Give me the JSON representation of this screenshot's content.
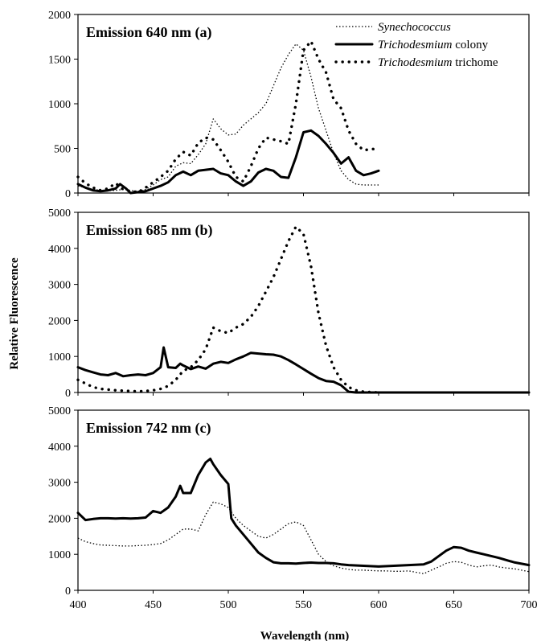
{
  "figure": {
    "ylabel": "Relative Fluorescence",
    "xlabel": "Wavelength (nm)"
  },
  "legend": {
    "items": [
      {
        "name": "Synechococcus",
        "italic_part": "Synechococcus",
        "rest": "",
        "style": "fine-dotted"
      },
      {
        "name": "Trichodesmium colony",
        "italic_part": "Trichodesmium",
        "rest": " colony",
        "style": "solid"
      },
      {
        "name": "Trichodesmium trichome",
        "italic_part": "Trichodesmium",
        "rest": " trichome",
        "style": "coarse-dotted"
      }
    ]
  },
  "chart_data": [
    {
      "type": "line",
      "title": "Emission 640 nm (a)",
      "xlim": [
        400,
        700
      ],
      "ylim": [
        0,
        2000
      ],
      "yticks": [
        0,
        500,
        1000,
        1500,
        2000
      ],
      "grid": false,
      "legend_position": "top-right",
      "series": [
        {
          "name": "Synechococcus",
          "style": "fine-dotted",
          "x": [
            400,
            405,
            410,
            415,
            420,
            425,
            430,
            435,
            440,
            445,
            450,
            455,
            460,
            465,
            470,
            475,
            480,
            485,
            490,
            495,
            500,
            505,
            510,
            515,
            520,
            525,
            530,
            535,
            540,
            545,
            550,
            555,
            560,
            565,
            570,
            575,
            580,
            585,
            590,
            600
          ],
          "y": [
            80,
            60,
            40,
            30,
            25,
            30,
            40,
            30,
            20,
            40,
            90,
            150,
            180,
            300,
            340,
            330,
            430,
            550,
            830,
            720,
            650,
            660,
            760,
            830,
            900,
            1000,
            1200,
            1400,
            1550,
            1670,
            1600,
            1300,
            950,
            700,
            450,
            250,
            150,
            100,
            90,
            90
          ]
        },
        {
          "name": "Trichodesmium colony",
          "style": "solid",
          "x": [
            400,
            405,
            410,
            415,
            420,
            425,
            428,
            432,
            435,
            440,
            445,
            450,
            455,
            460,
            465,
            470,
            475,
            480,
            485,
            490,
            495,
            500,
            505,
            510,
            515,
            520,
            525,
            530,
            535,
            540,
            545,
            550,
            555,
            560,
            565,
            570,
            575,
            580,
            585,
            590,
            595,
            600
          ],
          "y": [
            100,
            60,
            30,
            20,
            30,
            50,
            100,
            50,
            0,
            10,
            20,
            50,
            80,
            120,
            200,
            240,
            200,
            250,
            260,
            270,
            220,
            200,
            130,
            80,
            130,
            230,
            270,
            250,
            180,
            170,
            400,
            680,
            700,
            640,
            550,
            450,
            330,
            400,
            250,
            200,
            220,
            250
          ]
        },
        {
          "name": "Trichodesmium trichome",
          "style": "coarse-dotted",
          "x": [
            400,
            405,
            410,
            415,
            420,
            425,
            430,
            435,
            440,
            445,
            450,
            455,
            460,
            465,
            470,
            475,
            480,
            485,
            490,
            495,
            500,
            505,
            510,
            515,
            520,
            525,
            530,
            535,
            540,
            545,
            550,
            555,
            560,
            565,
            570,
            575,
            580,
            585,
            590,
            600
          ],
          "y": [
            180,
            110,
            60,
            30,
            50,
            110,
            40,
            20,
            10,
            60,
            120,
            180,
            250,
            380,
            460,
            420,
            560,
            620,
            600,
            480,
            350,
            180,
            130,
            300,
            500,
            620,
            600,
            580,
            550,
            1000,
            1600,
            1700,
            1500,
            1350,
            1050,
            950,
            700,
            550,
            480,
            500
          ]
        }
      ]
    },
    {
      "type": "line",
      "title": "Emission 685 nm (b)",
      "xlim": [
        400,
        700
      ],
      "ylim": [
        0,
        5000
      ],
      "yticks": [
        0,
        1000,
        2000,
        3000,
        4000,
        5000
      ],
      "grid": false,
      "series": [
        {
          "name": "Trichodesmium colony",
          "style": "solid",
          "x": [
            400,
            405,
            410,
            415,
            420,
            425,
            430,
            435,
            440,
            445,
            450,
            455,
            457,
            460,
            465,
            468,
            470,
            475,
            480,
            485,
            490,
            495,
            500,
            505,
            510,
            515,
            520,
            525,
            530,
            535,
            540,
            545,
            550,
            555,
            560,
            565,
            570,
            575,
            580,
            585,
            590,
            600,
            700
          ],
          "y": [
            700,
            620,
            560,
            500,
            480,
            540,
            450,
            480,
            500,
            480,
            540,
            700,
            1250,
            700,
            680,
            800,
            750,
            650,
            720,
            660,
            800,
            850,
            820,
            920,
            1000,
            1100,
            1080,
            1060,
            1050,
            1000,
            900,
            780,
            650,
            520,
            400,
            320,
            300,
            200,
            20,
            0,
            0,
            0,
            0
          ]
        },
        {
          "name": "Trichodesmium trichome",
          "style": "coarse-dotted",
          "x": [
            400,
            405,
            410,
            415,
            420,
            425,
            430,
            435,
            440,
            445,
            450,
            455,
            460,
            465,
            470,
            475,
            480,
            485,
            490,
            495,
            500,
            505,
            510,
            515,
            520,
            525,
            530,
            535,
            540,
            545,
            550,
            555,
            560,
            565,
            570,
            575,
            580,
            585,
            590,
            600
          ],
          "y": [
            350,
            250,
            150,
            100,
            80,
            60,
            50,
            40,
            30,
            40,
            60,
            100,
            180,
            350,
            600,
            700,
            900,
            1200,
            1800,
            1700,
            1650,
            1800,
            1900,
            2100,
            2400,
            2800,
            3200,
            3700,
            4200,
            4600,
            4400,
            3500,
            2200,
            1300,
            700,
            350,
            150,
            60,
            20,
            0
          ]
        }
      ]
    },
    {
      "type": "line",
      "title": "Emission 742 nm (c)",
      "xlim": [
        400,
        700
      ],
      "ylim": [
        0,
        5000
      ],
      "yticks": [
        0,
        1000,
        2000,
        3000,
        4000,
        5000
      ],
      "xticks": [
        400,
        450,
        500,
        550,
        600,
        650,
        700
      ],
      "grid": false,
      "series": [
        {
          "name": "Synechococcus",
          "style": "fine-dotted",
          "x": [
            400,
            405,
            410,
            415,
            420,
            425,
            430,
            435,
            440,
            445,
            450,
            455,
            460,
            465,
            470,
            475,
            480,
            485,
            490,
            495,
            500,
            505,
            510,
            515,
            520,
            525,
            530,
            535,
            540,
            545,
            550,
            555,
            560,
            565,
            570,
            575,
            580,
            585,
            590,
            595,
            600,
            605,
            610,
            615,
            620,
            625,
            630,
            635,
            640,
            645,
            650,
            655,
            660,
            665,
            670,
            675,
            680,
            685,
            690,
            695,
            700
          ],
          "y": [
            1450,
            1350,
            1300,
            1260,
            1250,
            1240,
            1230,
            1230,
            1240,
            1250,
            1270,
            1300,
            1400,
            1550,
            1700,
            1700,
            1650,
            2100,
            2450,
            2400,
            2300,
            2000,
            1800,
            1650,
            1500,
            1450,
            1550,
            1700,
            1850,
            1900,
            1800,
            1400,
            1000,
            800,
            680,
            620,
            580,
            560,
            560,
            550,
            540,
            540,
            530,
            530,
            540,
            500,
            460,
            560,
            650,
            750,
            800,
            780,
            700,
            650,
            680,
            700,
            650,
            620,
            600,
            560,
            520
          ]
        },
        {
          "name": "Trichodesmium colony",
          "style": "solid",
          "x": [
            400,
            405,
            410,
            415,
            420,
            425,
            430,
            435,
            440,
            445,
            450,
            455,
            460,
            465,
            468,
            470,
            475,
            480,
            485,
            488,
            490,
            495,
            500,
            502,
            505,
            510,
            515,
            520,
            525,
            530,
            535,
            540,
            545,
            550,
            555,
            560,
            565,
            570,
            575,
            580,
            590,
            600,
            610,
            620,
            630,
            635,
            640,
            645,
            650,
            655,
            660,
            665,
            670,
            680,
            690,
            700
          ],
          "y": [
            2150,
            1950,
            1980,
            2000,
            2000,
            1990,
            2000,
            1990,
            2000,
            2020,
            2200,
            2150,
            2300,
            2600,
            2900,
            2700,
            2700,
            3200,
            3550,
            3650,
            3500,
            3200,
            2950,
            2000,
            1800,
            1550,
            1300,
            1050,
            900,
            780,
            750,
            750,
            740,
            760,
            770,
            760,
            760,
            750,
            720,
            700,
            680,
            660,
            680,
            700,
            720,
            800,
            950,
            1100,
            1200,
            1180,
            1100,
            1050,
            1000,
            900,
            780,
            700
          ]
        }
      ]
    }
  ]
}
